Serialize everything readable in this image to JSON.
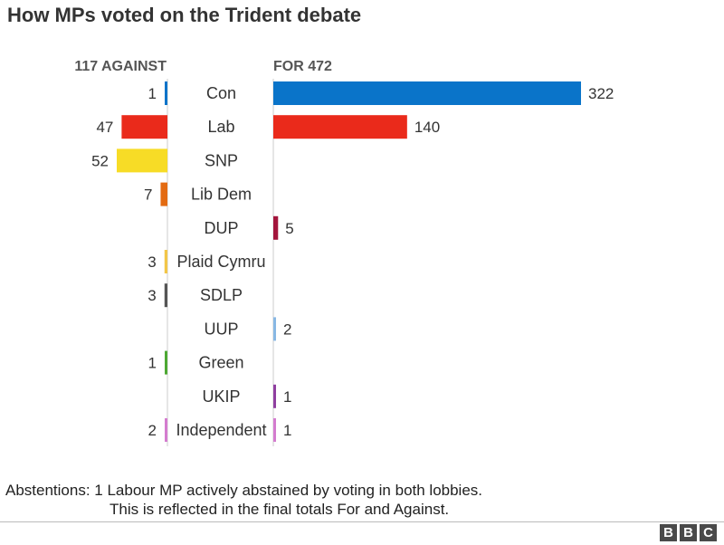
{
  "title": "How MPs voted on the Trident debate",
  "chart_data": {
    "type": "bar",
    "orientation": "horizontal-diverging",
    "against_header": "117 AGAINST",
    "for_header": "FOR 472",
    "categories": [
      "Con",
      "Lab",
      "SNP",
      "Lib Dem",
      "DUP",
      "Plaid Cymru",
      "SDLP",
      "UUP",
      "Green",
      "UKIP",
      "Independent"
    ],
    "series": [
      {
        "name": "AGAINST",
        "values": [
          1,
          47,
          52,
          7,
          0,
          3,
          3,
          0,
          1,
          0,
          2
        ]
      },
      {
        "name": "FOR",
        "values": [
          322,
          140,
          0,
          0,
          5,
          0,
          0,
          2,
          0,
          1,
          1
        ]
      }
    ],
    "colors": [
      "#0a74c9",
      "#ea2a1b",
      "#f7dc26",
      "#e36b12",
      "#a3153c",
      "#f2c648",
      "#555555",
      "#88b8e4",
      "#4da833",
      "#8f3fa0",
      "#d47ccf"
    ],
    "against_xlim": [
      0,
      52
    ],
    "for_xlim": [
      0,
      322
    ],
    "grid": false,
    "legend": "none"
  },
  "note": {
    "line1": "Abstentions: 1 Labour MP actively abstained by voting in both lobbies.",
    "line2": "This is reflected in the final totals For and Against."
  },
  "logo": [
    "B",
    "B",
    "C"
  ]
}
